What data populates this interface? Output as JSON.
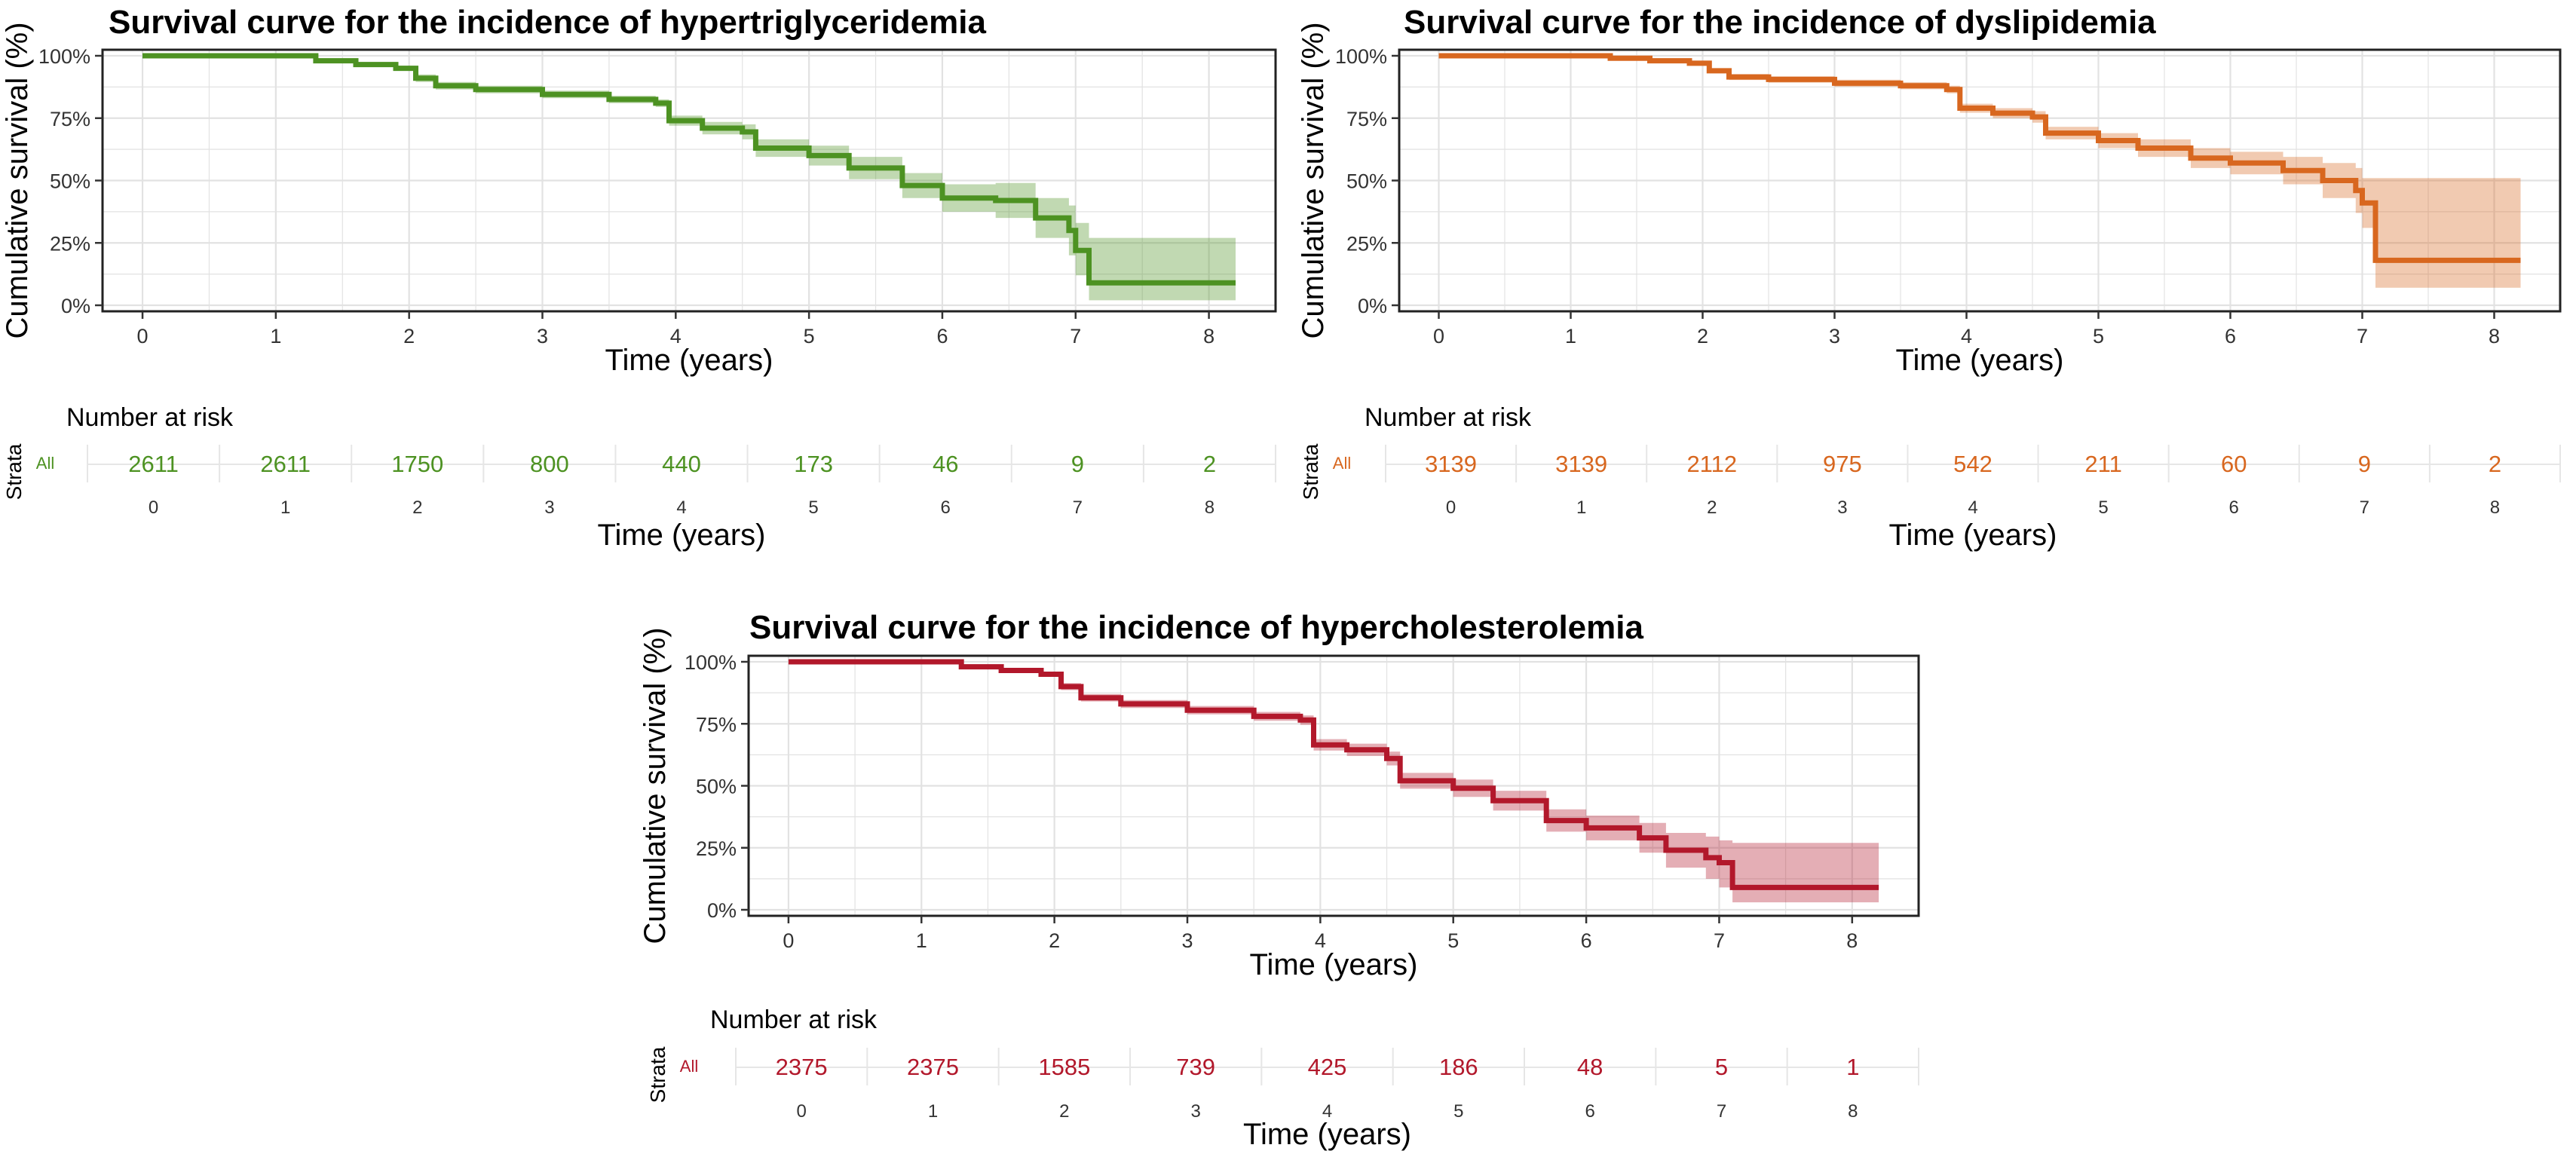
{
  "chart_data": [
    {
      "type": "line",
      "title": "Survival curve for the incidence of hypertriglyceridemia",
      "xlabel": "Time (years)",
      "ylabel": "Cumulative survival (%)",
      "color": "#4d9222",
      "xlim": [
        -0.3,
        8.5
      ],
      "ylim": [
        0,
        100
      ],
      "x_ticks": [
        "0",
        "1",
        "2",
        "3",
        "4",
        "5",
        "6",
        "7",
        "8"
      ],
      "y_ticks": [
        "0%",
        "25%",
        "50%",
        "75%",
        "100%"
      ],
      "grid": true,
      "series": [
        {
          "x": [
            0,
            1.05,
            1.3,
            1.6,
            1.9,
            2.05,
            2.2,
            2.5,
            3.0,
            3.5,
            3.85,
            3.95,
            4.2,
            4.5,
            4.6,
            5.0,
            5.3,
            5.7,
            6.0,
            6.4,
            6.7,
            6.95,
            7.0,
            7.1,
            8.2
          ],
          "y": [
            100,
            100,
            98,
            96.5,
            95,
            91,
            88,
            86.5,
            84.5,
            82.5,
            81,
            74,
            71,
            69.5,
            63,
            60,
            55,
            48,
            43,
            42,
            35,
            30,
            22,
            9,
            9
          ],
          "lower": [
            100,
            100,
            97.5,
            95.8,
            94,
            89.5,
            86.5,
            85,
            83,
            81,
            79.5,
            72,
            68.5,
            66.5,
            59.5,
            56,
            50.5,
            43,
            37.5,
            35,
            27,
            20,
            12,
            2,
            2
          ],
          "upper": [
            100,
            100,
            98.5,
            97.2,
            96,
            92.5,
            89.5,
            88,
            86,
            84,
            82.5,
            76,
            73.5,
            72.5,
            66.5,
            64,
            59.5,
            53,
            48.5,
            49,
            43,
            40,
            33,
            27,
            27
          ]
        }
      ],
      "risk_table": {
        "title": "Number at risk",
        "strata_label": "Strata",
        "row_label": "All",
        "counts": [
          "2611",
          "2611",
          "1750",
          "800",
          "440",
          "173",
          "46",
          "9",
          "2"
        ],
        "x_ticks": [
          "0",
          "1",
          "2",
          "3",
          "4",
          "5",
          "6",
          "7",
          "8"
        ],
        "xlabel": "Time (years)"
      }
    },
    {
      "type": "line",
      "title": "Survival curve for the incidence of dyslipidemia",
      "xlabel": "Time (years)",
      "ylabel": "Cumulative survival (%)",
      "color": "#d8671f",
      "xlim": [
        -0.3,
        8.5
      ],
      "ylim": [
        0,
        100
      ],
      "x_ticks": [
        "0",
        "1",
        "2",
        "3",
        "4",
        "5",
        "6",
        "7",
        "8"
      ],
      "y_ticks": [
        "0%",
        "25%",
        "50%",
        "75%",
        "100%"
      ],
      "grid": true,
      "series": [
        {
          "x": [
            0,
            1.05,
            1.3,
            1.6,
            1.9,
            2.05,
            2.2,
            2.5,
            3.0,
            3.5,
            3.85,
            3.95,
            4.2,
            4.5,
            4.6,
            5.0,
            5.3,
            5.7,
            6.0,
            6.4,
            6.7,
            6.95,
            7.0,
            7.1,
            8.2
          ],
          "y": [
            100,
            100,
            99,
            98,
            97,
            94,
            91.5,
            90.5,
            89,
            88,
            86.5,
            79,
            77,
            75.5,
            69,
            66,
            63,
            59,
            57,
            54,
            50,
            46,
            41,
            18,
            18
          ],
          "lower": [
            100,
            100,
            98.5,
            97.4,
            96.3,
            93,
            90.3,
            89.2,
            87.6,
            86.6,
            85,
            77.2,
            75,
            73.2,
            66.5,
            63,
            59.5,
            55,
            52.5,
            48.5,
            43,
            37,
            31,
            7,
            7
          ],
          "upper": [
            100,
            100,
            99.5,
            98.6,
            97.7,
            95,
            92.7,
            91.8,
            90.4,
            89.4,
            88,
            80.8,
            79,
            77.8,
            71.5,
            69,
            66.5,
            63,
            61.5,
            59.5,
            57,
            55,
            51,
            51,
            51
          ]
        }
      ],
      "risk_table": {
        "title": "Number at risk",
        "strata_label": "Strata",
        "row_label": "All",
        "counts": [
          "3139",
          "3139",
          "2112",
          "975",
          "542",
          "211",
          "60",
          "9",
          "2"
        ],
        "x_ticks": [
          "0",
          "1",
          "2",
          "3",
          "4",
          "5",
          "6",
          "7",
          "8"
        ],
        "xlabel": "Time (years)"
      }
    },
    {
      "type": "line",
      "title": "Survival curve for the incidence of hypercholesterolemia",
      "xlabel": "Time (years)",
      "ylabel": "Cumulative survival (%)",
      "color": "#b2182b",
      "xlim": [
        -0.3,
        8.5
      ],
      "ylim": [
        0,
        100
      ],
      "x_ticks": [
        "0",
        "1",
        "2",
        "3",
        "4",
        "5",
        "6",
        "7",
        "8"
      ],
      "y_ticks": [
        "0%",
        "25%",
        "50%",
        "75%",
        "100%"
      ],
      "grid": true,
      "series": [
        {
          "x": [
            0,
            1.05,
            1.3,
            1.6,
            1.9,
            2.05,
            2.2,
            2.5,
            3.0,
            3.5,
            3.85,
            3.95,
            4.2,
            4.5,
            4.6,
            5.0,
            5.3,
            5.7,
            6.0,
            6.4,
            6.6,
            6.9,
            7.0,
            7.1,
            8.2
          ],
          "y": [
            100,
            100,
            98,
            96.5,
            95,
            90,
            85.5,
            83,
            80.5,
            78,
            76.5,
            66.5,
            64.5,
            61,
            52,
            49,
            44,
            36,
            33,
            29,
            24,
            21,
            19,
            9,
            9
          ],
          "lower": [
            100,
            100,
            97.4,
            95.8,
            94,
            88.6,
            84,
            81.4,
            78.8,
            76.2,
            74.6,
            64.2,
            62,
            58.2,
            48.8,
            45.5,
            40,
            31.5,
            28,
            23,
            17,
            12.5,
            9,
            3,
            3
          ],
          "upper": [
            100,
            100,
            98.6,
            97.2,
            96,
            91.4,
            87,
            84.6,
            82.2,
            79.8,
            78.4,
            68.8,
            67,
            63.8,
            55.2,
            52.5,
            48,
            40.5,
            38,
            35,
            31,
            29.5,
            28,
            27,
            27
          ]
        }
      ],
      "risk_table": {
        "title": "Number at risk",
        "strata_label": "Strata",
        "row_label": "All",
        "counts": [
          "2375",
          "2375",
          "1585",
          "739",
          "425",
          "186",
          "48",
          "5",
          "1"
        ],
        "x_ticks": [
          "0",
          "1",
          "2",
          "3",
          "4",
          "5",
          "6",
          "7",
          "8"
        ],
        "xlabel": "Time (years)"
      }
    }
  ]
}
